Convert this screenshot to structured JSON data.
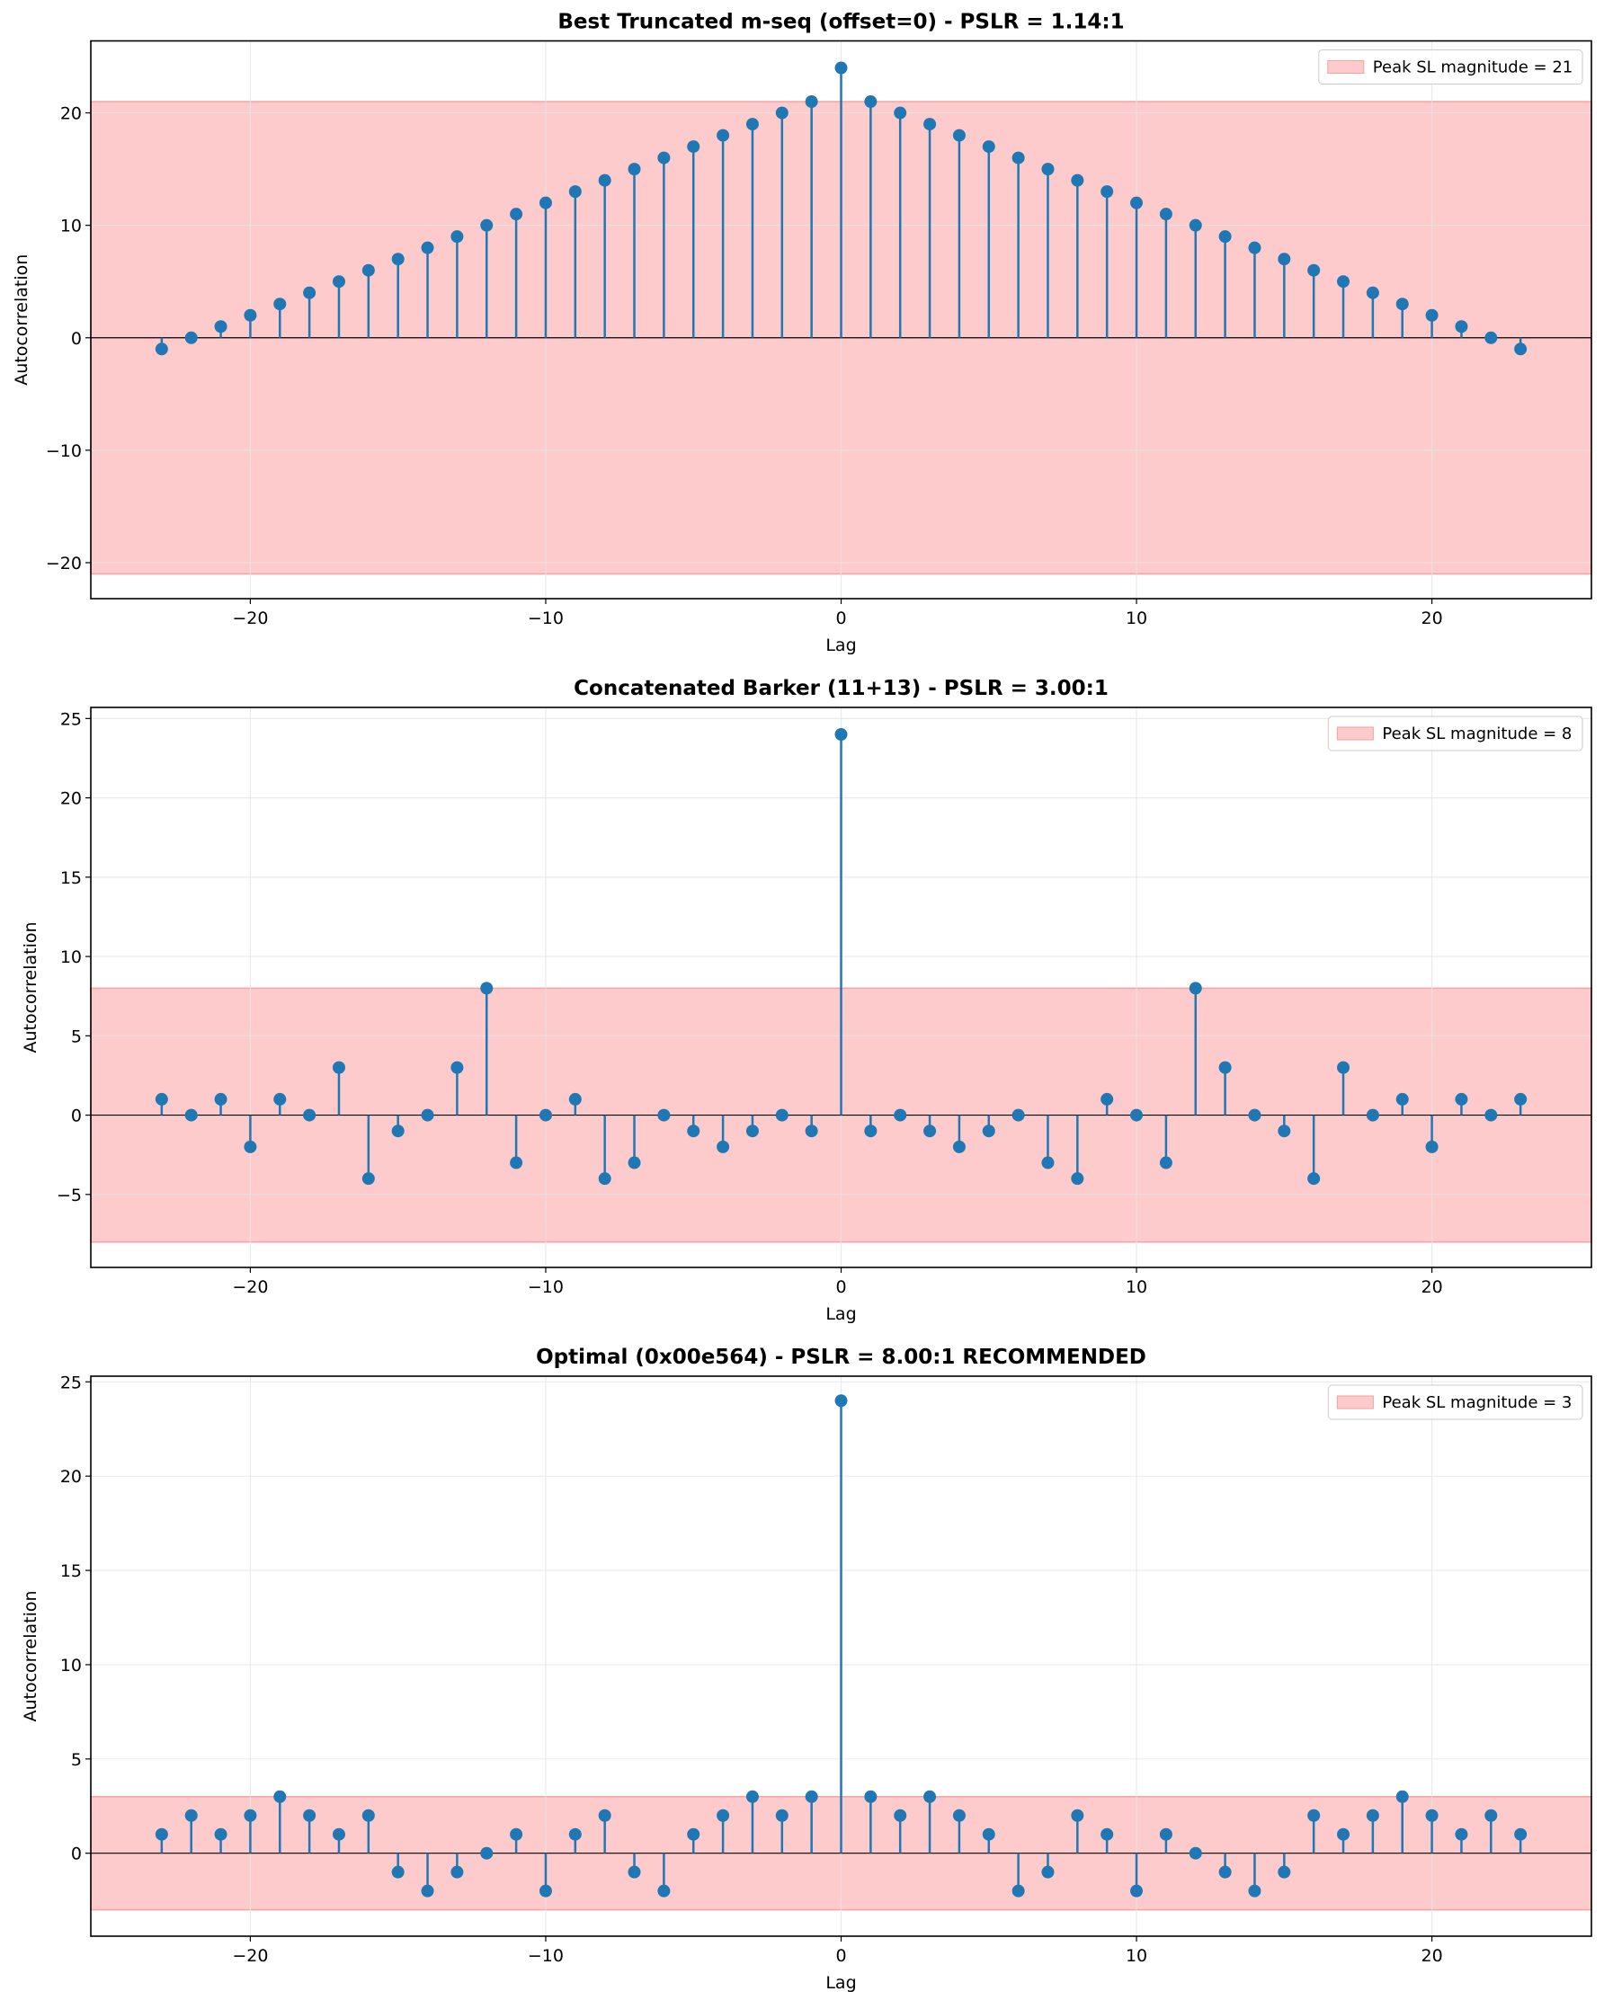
{
  "colors": {
    "stem": "#1f77b4",
    "band_fill": "#fdcbcb",
    "band_edge": "#f7a1a1",
    "grid": "#e6e6e6"
  },
  "chart_data": [
    {
      "type": "stem",
      "title": "Best Truncated m-seq (offset=0) - PSLR = 1.14:1",
      "xlabel": "Lag",
      "ylabel": "Autocorrelation",
      "xlim": [
        -25.4,
        25.4
      ],
      "ylim": [
        -23.2,
        26.4
      ],
      "xticks": [
        -20,
        -10,
        0,
        10,
        20
      ],
      "xtick_labels": [
        "−20",
        "−10",
        "0",
        "10",
        "20"
      ],
      "yticks": [
        -20,
        -10,
        0,
        10,
        20
      ],
      "ytick_labels": [
        "−20",
        "−10",
        "0",
        "10",
        "20"
      ],
      "grid": true,
      "band": 21,
      "legend": "Peak SL magnitude = 21",
      "legend_position": "top-right",
      "x": [
        -23,
        -22,
        -21,
        -20,
        -19,
        -18,
        -17,
        -16,
        -15,
        -14,
        -13,
        -12,
        -11,
        -10,
        -9,
        -8,
        -7,
        -6,
        -5,
        -4,
        -3,
        -2,
        -1,
        0,
        1,
        2,
        3,
        4,
        5,
        6,
        7,
        8,
        9,
        10,
        11,
        12,
        13,
        14,
        15,
        16,
        17,
        18,
        19,
        20,
        21,
        22,
        23
      ],
      "values": [
        -1,
        0,
        1,
        2,
        3,
        4,
        5,
        6,
        7,
        8,
        9,
        10,
        11,
        12,
        13,
        14,
        15,
        16,
        17,
        18,
        19,
        20,
        21,
        24,
        21,
        20,
        19,
        18,
        17,
        16,
        15,
        14,
        13,
        12,
        11,
        10,
        9,
        8,
        7,
        6,
        5,
        4,
        3,
        2,
        1,
        0,
        -1
      ]
    },
    {
      "type": "stem",
      "title": "Concatenated Barker (11+13) - PSLR = 3.00:1",
      "xlabel": "Lag",
      "ylabel": "Autocorrelation",
      "xlim": [
        -25.4,
        25.4
      ],
      "ylim": [
        -9.6,
        25.7
      ],
      "xticks": [
        -20,
        -10,
        0,
        10,
        20
      ],
      "xtick_labels": [
        "−20",
        "−10",
        "0",
        "10",
        "20"
      ],
      "yticks": [
        -5,
        0,
        5,
        10,
        15,
        20,
        25
      ],
      "ytick_labels": [
        "−5",
        "0",
        "5",
        "10",
        "15",
        "20",
        "25"
      ],
      "grid": true,
      "band": 8,
      "legend": "Peak SL magnitude = 8",
      "legend_position": "top-right",
      "x": [
        -23,
        -22,
        -21,
        -20,
        -19,
        -18,
        -17,
        -16,
        -15,
        -14,
        -13,
        -12,
        -11,
        -10,
        -9,
        -8,
        -7,
        -6,
        -5,
        -4,
        -3,
        -2,
        -1,
        0,
        1,
        2,
        3,
        4,
        5,
        6,
        7,
        8,
        9,
        10,
        11,
        12,
        13,
        14,
        15,
        16,
        17,
        18,
        19,
        20,
        21,
        22,
        23
      ],
      "values": [
        1,
        0,
        1,
        -2,
        1,
        0,
        3,
        -4,
        -1,
        0,
        3,
        8,
        -3,
        0,
        1,
        -4,
        -3,
        0,
        -1,
        -2,
        -1,
        0,
        -1,
        24,
        -1,
        0,
        -1,
        -2,
        -1,
        0,
        -3,
        -4,
        1,
        0,
        -3,
        8,
        3,
        0,
        -1,
        -4,
        3,
        0,
        1,
        -2,
        1,
        0,
        1
      ]
    },
    {
      "type": "stem",
      "title": "Optimal (0x00e564) - PSLR = 8.00:1  RECOMMENDED",
      "xlabel": "Lag",
      "ylabel": "Autocorrelation",
      "xlim": [
        -25.4,
        25.4
      ],
      "ylim": [
        -4.4,
        25.3
      ],
      "xticks": [
        -20,
        -10,
        0,
        10,
        20
      ],
      "xtick_labels": [
        "−20",
        "−10",
        "0",
        "10",
        "20"
      ],
      "yticks": [
        0,
        5,
        10,
        15,
        20,
        25
      ],
      "ytick_labels": [
        "0",
        "5",
        "10",
        "15",
        "20",
        "25"
      ],
      "grid": true,
      "band": 3,
      "legend": "Peak SL magnitude = 3",
      "legend_position": "top-right",
      "x": [
        -23,
        -22,
        -21,
        -20,
        -19,
        -18,
        -17,
        -16,
        -15,
        -14,
        -13,
        -12,
        -11,
        -10,
        -9,
        -8,
        -7,
        -6,
        -5,
        -4,
        -3,
        -2,
        -1,
        0,
        1,
        2,
        3,
        4,
        5,
        6,
        7,
        8,
        9,
        10,
        11,
        12,
        13,
        14,
        15,
        16,
        17,
        18,
        19,
        20,
        21,
        22,
        23
      ],
      "values": [
        1,
        2,
        1,
        2,
        3,
        2,
        1,
        2,
        -1,
        -2,
        -1,
        0,
        1,
        -2,
        1,
        2,
        -1,
        -2,
        1,
        2,
        3,
        2,
        3,
        24,
        3,
        2,
        3,
        2,
        1,
        -2,
        -1,
        2,
        1,
        -2,
        1,
        0,
        -1,
        -2,
        -1,
        2,
        1,
        2,
        3,
        2,
        1,
        2,
        1
      ]
    }
  ]
}
